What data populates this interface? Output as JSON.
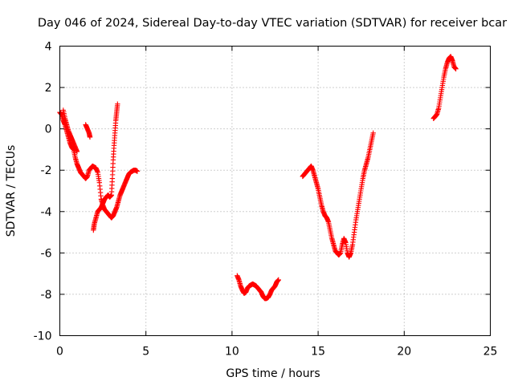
{
  "title": "Day 046 of 2024, Sidereal Day-to-day VTEC variation (SDTVAR) for receiver bcar",
  "chart_data": {
    "type": "scatter",
    "title": "Day 046 of 2024, Sidereal Day-to-day VTEC variation (SDTVAR) for receiver bcar",
    "xlabel": "GPS time / hours",
    "ylabel": "SDTVAR / TECUs",
    "xlim": [
      0,
      25
    ],
    "ylim": [
      -10,
      4
    ],
    "xticks": [
      0,
      5,
      10,
      15,
      20,
      25
    ],
    "yticks": [
      -10,
      -8,
      -6,
      -4,
      -2,
      0,
      2,
      4
    ],
    "grid": true,
    "marker": "+",
    "color": "#ff0000",
    "series": [
      {
        "segments": [
          [
            [
              0.0,
              0.8
            ],
            [
              0.1,
              0.7
            ],
            [
              0.2,
              0.4
            ],
            [
              0.3,
              0.2
            ],
            [
              0.4,
              -0.1
            ],
            [
              0.5,
              -0.4
            ],
            [
              0.6,
              -0.7
            ],
            [
              0.7,
              -0.9
            ],
            [
              0.8,
              -1.0
            ],
            [
              0.9,
              -1.4
            ],
            [
              1.0,
              -1.7
            ],
            [
              1.1,
              -1.9
            ],
            [
              1.2,
              -2.1
            ],
            [
              1.3,
              -2.2
            ],
            [
              1.4,
              -2.3
            ],
            [
              1.5,
              -2.4
            ],
            [
              1.6,
              -2.3
            ],
            [
              1.7,
              -2.0
            ],
            [
              1.8,
              -1.9
            ],
            [
              1.9,
              -1.8
            ],
            [
              2.0,
              -1.85
            ],
            [
              2.1,
              -1.9
            ],
            [
              2.2,
              -2.1
            ],
            [
              2.3,
              -2.6
            ],
            [
              2.4,
              -3.4
            ],
            [
              2.5,
              -3.7
            ],
            [
              2.6,
              -3.9
            ],
            [
              2.7,
              -4.0
            ],
            [
              2.8,
              -4.1
            ],
            [
              2.9,
              -4.2
            ],
            [
              3.0,
              -4.3
            ],
            [
              3.1,
              -4.2
            ],
            [
              3.2,
              -4.0
            ],
            [
              3.3,
              -3.8
            ],
            [
              3.4,
              -3.5
            ],
            [
              3.5,
              -3.2
            ],
            [
              3.6,
              -3.0
            ],
            [
              3.7,
              -2.8
            ],
            [
              3.8,
              -2.6
            ],
            [
              3.9,
              -2.4
            ],
            [
              4.0,
              -2.2
            ],
            [
              4.1,
              -2.1
            ],
            [
              4.2,
              -2.05
            ],
            [
              4.3,
              -2.0
            ],
            [
              4.4,
              -2.0
            ],
            [
              4.5,
              -2.05
            ]
          ],
          [
            [
              0.2,
              0.9
            ],
            [
              0.3,
              0.5
            ],
            [
              0.4,
              0.2
            ],
            [
              0.5,
              -0.1
            ],
            [
              0.6,
              -0.3
            ],
            [
              0.7,
              -0.5
            ],
            [
              0.8,
              -0.7
            ],
            [
              0.9,
              -0.9
            ],
            [
              1.0,
              -1.1
            ]
          ],
          [
            [
              1.5,
              0.2
            ],
            [
              1.6,
              0.0
            ],
            [
              1.7,
              -0.2
            ],
            [
              1.75,
              -0.4
            ]
          ],
          [
            [
              1.95,
              -4.9
            ],
            [
              2.0,
              -4.6
            ],
            [
              2.1,
              -4.3
            ],
            [
              2.2,
              -4.0
            ],
            [
              2.3,
              -3.9
            ],
            [
              2.4,
              -3.8
            ],
            [
              2.5,
              -3.6
            ],
            [
              2.6,
              -3.4
            ],
            [
              2.7,
              -3.3
            ],
            [
              2.8,
              -3.2
            ],
            [
              2.9,
              -3.3
            ],
            [
              3.0,
              -3.2
            ],
            [
              3.05,
              -2.4
            ],
            [
              3.1,
              -1.5
            ],
            [
              3.15,
              -0.8
            ],
            [
              3.2,
              -0.2
            ],
            [
              3.25,
              0.4
            ],
            [
              3.3,
              0.8
            ],
            [
              3.35,
              1.2
            ]
          ],
          [
            [
              10.3,
              -7.1
            ],
            [
              10.4,
              -7.3
            ],
            [
              10.5,
              -7.6
            ],
            [
              10.6,
              -7.8
            ],
            [
              10.7,
              -7.95
            ],
            [
              10.8,
              -7.9
            ],
            [
              10.9,
              -7.7
            ],
            [
              11.0,
              -7.6
            ],
            [
              11.1,
              -7.55
            ],
            [
              11.2,
              -7.5
            ],
            [
              11.3,
              -7.55
            ],
            [
              11.4,
              -7.6
            ],
            [
              11.5,
              -7.7
            ],
            [
              11.6,
              -7.8
            ],
            [
              11.7,
              -7.9
            ],
            [
              11.8,
              -8.1
            ],
            [
              11.9,
              -8.2
            ],
            [
              12.0,
              -8.2
            ],
            [
              12.1,
              -8.15
            ],
            [
              12.2,
              -8.0
            ],
            [
              12.3,
              -7.8
            ],
            [
              12.4,
              -7.7
            ],
            [
              12.5,
              -7.6
            ],
            [
              12.6,
              -7.4
            ],
            [
              12.7,
              -7.3
            ]
          ],
          [
            [
              14.1,
              -2.3
            ],
            [
              14.2,
              -2.2
            ],
            [
              14.3,
              -2.1
            ],
            [
              14.4,
              -2.0
            ],
            [
              14.5,
              -1.9
            ],
            [
              14.6,
              -1.8
            ],
            [
              14.7,
              -2.0
            ],
            [
              14.8,
              -2.3
            ],
            [
              14.9,
              -2.6
            ],
            [
              15.0,
              -2.9
            ],
            [
              15.1,
              -3.3
            ],
            [
              15.2,
              -3.7
            ],
            [
              15.3,
              -4.0
            ],
            [
              15.4,
              -4.2
            ],
            [
              15.5,
              -4.3
            ],
            [
              15.6,
              -4.5
            ],
            [
              15.7,
              -4.9
            ],
            [
              15.8,
              -5.3
            ],
            [
              15.9,
              -5.6
            ],
            [
              16.0,
              -5.9
            ],
            [
              16.1,
              -6.0
            ],
            [
              16.2,
              -6.1
            ],
            [
              16.3,
              -6.0
            ],
            [
              16.4,
              -5.6
            ],
            [
              16.5,
              -5.3
            ],
            [
              16.6,
              -5.5
            ],
            [
              16.7,
              -6.0
            ],
            [
              16.8,
              -6.2
            ],
            [
              16.9,
              -6.0
            ],
            [
              17.0,
              -5.6
            ],
            [
              17.1,
              -5.0
            ],
            [
              17.2,
              -4.4
            ],
            [
              17.3,
              -3.9
            ],
            [
              17.4,
              -3.4
            ],
            [
              17.5,
              -2.9
            ],
            [
              17.6,
              -2.4
            ],
            [
              17.7,
              -2.0
            ],
            [
              17.8,
              -1.7
            ],
            [
              17.9,
              -1.4
            ],
            [
              18.0,
              -1.0
            ],
            [
              18.1,
              -0.6
            ],
            [
              18.2,
              -0.2
            ]
          ],
          [
            [
              21.7,
              0.5
            ],
            [
              21.8,
              0.6
            ],
            [
              21.9,
              0.7
            ],
            [
              22.0,
              1.0
            ],
            [
              22.1,
              1.5
            ],
            [
              22.2,
              2.0
            ],
            [
              22.3,
              2.5
            ],
            [
              22.4,
              2.9
            ],
            [
              22.5,
              3.2
            ],
            [
              22.6,
              3.4
            ],
            [
              22.7,
              3.5
            ],
            [
              22.8,
              3.3
            ],
            [
              22.9,
              3.0
            ],
            [
              23.0,
              2.9
            ]
          ]
        ]
      }
    ]
  }
}
